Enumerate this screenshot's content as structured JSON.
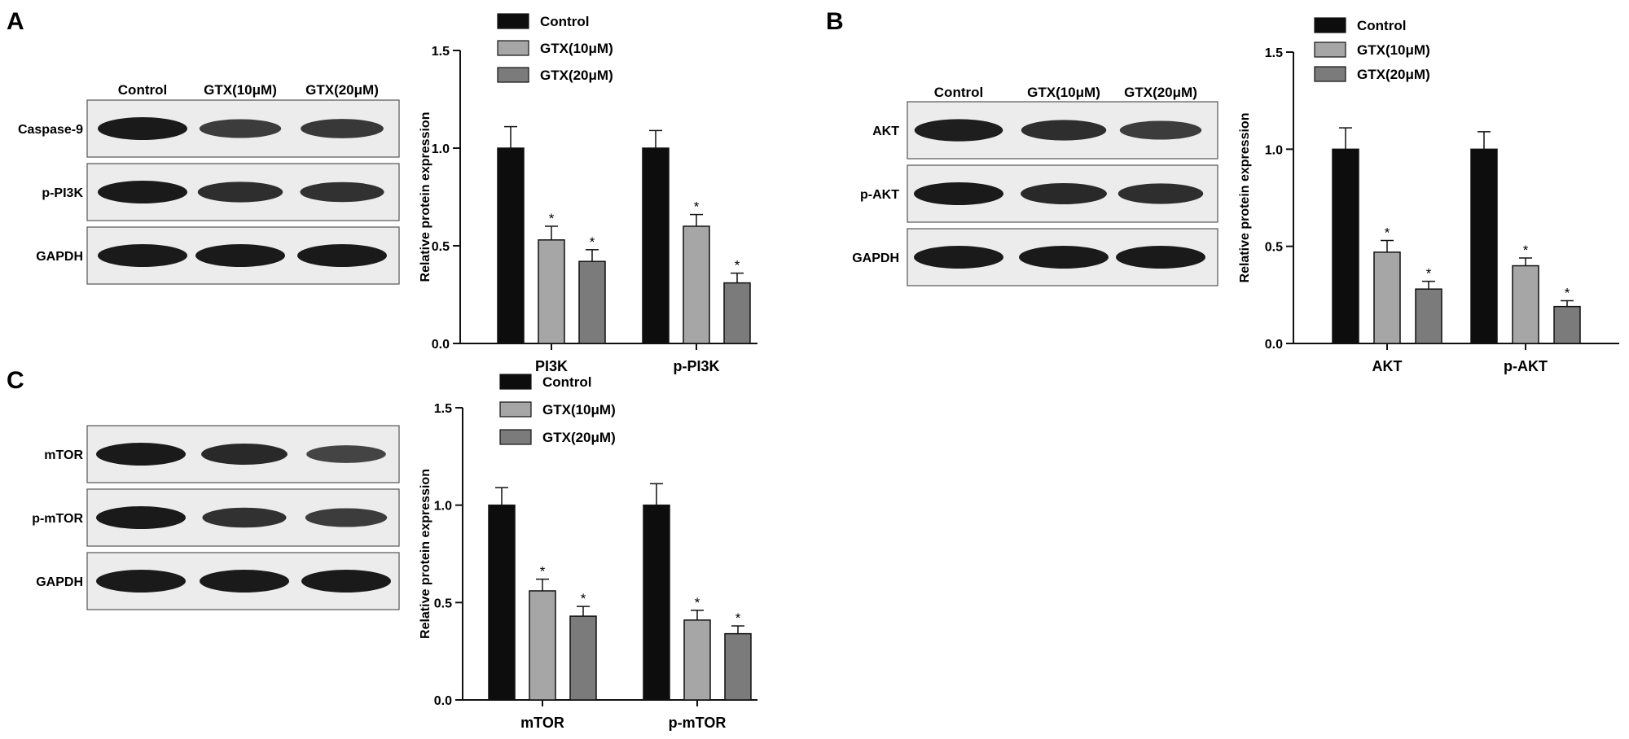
{
  "colors": {
    "control": "#0d0d0d",
    "gtx10": "#a6a6a6",
    "gtx20": "#7b7b7b",
    "axis": "#111111",
    "blot_bg": "#ececec",
    "band": "#1a1a1a"
  },
  "chart_data": [
    {
      "panel": "A",
      "type": "bar",
      "categories": [
        "PI3K",
        "p-PI3K"
      ],
      "ylabel": "Relative protein expression",
      "ylim": [
        0,
        1.5
      ],
      "yticks": [
        "0.0",
        "0.5",
        "1.0",
        "1.5"
      ],
      "legend": [
        "Control",
        "GTX(10μM)",
        "GTX(20μM)"
      ],
      "series": [
        {
          "name": "Control",
          "values": [
            1.0,
            1.0
          ],
          "errors": [
            0.11,
            0.09
          ],
          "sig": [
            "",
            ""
          ]
        },
        {
          "name": "GTX(10μM)",
          "values": [
            0.53,
            0.6
          ],
          "errors": [
            0.07,
            0.06
          ],
          "sig": [
            "*",
            "*"
          ]
        },
        {
          "name": "GTX(20μM)",
          "values": [
            0.42,
            0.31
          ],
          "errors": [
            0.06,
            0.05
          ],
          "sig": [
            "*",
            "*"
          ]
        }
      ],
      "blot": {
        "lanes": [
          "Control",
          "GTX(10μM)",
          "GTX(20μM)"
        ],
        "rows": [
          {
            "label": "Caspase-9",
            "intensity": [
              1.0,
              0.65,
              0.7
            ]
          },
          {
            "label": "p-PI3K",
            "intensity": [
              1.0,
              0.8,
              0.75
            ]
          },
          {
            "label": "GAPDH",
            "intensity": [
              1.0,
              1.0,
              1.0
            ]
          }
        ]
      }
    },
    {
      "panel": "B",
      "type": "bar",
      "categories": [
        "AKT",
        "p-AKT"
      ],
      "ylabel": "Relative protein expression",
      "ylim": [
        0,
        1.5
      ],
      "yticks": [
        "0.0",
        "0.5",
        "1.0",
        "1.5"
      ],
      "legend": [
        "Control",
        "GTX(10μM)",
        "GTX(20μM)"
      ],
      "series": [
        {
          "name": "Control",
          "values": [
            1.0,
            1.0
          ],
          "errors": [
            0.11,
            0.09
          ],
          "sig": [
            "",
            ""
          ]
        },
        {
          "name": "GTX(10μM)",
          "values": [
            0.47,
            0.4
          ],
          "errors": [
            0.06,
            0.04
          ],
          "sig": [
            "*",
            "*"
          ]
        },
        {
          "name": "GTX(20μM)",
          "values": [
            0.28,
            0.19
          ],
          "errors": [
            0.04,
            0.03
          ],
          "sig": [
            "*",
            "*"
          ]
        }
      ],
      "blot": {
        "lanes": [
          "Control",
          "GTX(10μM)",
          "GTX(20μM)"
        ],
        "rows": [
          {
            "label": "AKT",
            "intensity": [
              0.95,
              0.8,
              0.65
            ]
          },
          {
            "label": "p-AKT",
            "intensity": [
              1.0,
              0.85,
              0.8
            ]
          },
          {
            "label": "GAPDH",
            "intensity": [
              1.0,
              1.0,
              1.0
            ]
          }
        ]
      }
    },
    {
      "panel": "C",
      "type": "bar",
      "categories": [
        "mTOR",
        "p-mTOR"
      ],
      "ylabel": "Relative protein expression",
      "ylim": [
        0,
        1.5
      ],
      "yticks": [
        "0.0",
        "0.5",
        "1.0",
        "1.5"
      ],
      "legend": [
        "Control",
        "GTX(10μM)",
        "GTX(20μM)"
      ],
      "series": [
        {
          "name": "Control",
          "values": [
            1.0,
            1.0
          ],
          "errors": [
            0.09,
            0.11
          ],
          "sig": [
            "",
            ""
          ]
        },
        {
          "name": "GTX(10μM)",
          "values": [
            0.56,
            0.41
          ],
          "errors": [
            0.06,
            0.05
          ],
          "sig": [
            "*",
            "*"
          ]
        },
        {
          "name": "GTX(20μM)",
          "values": [
            0.43,
            0.34
          ],
          "errors": [
            0.05,
            0.04
          ],
          "sig": [
            "*",
            "*"
          ]
        }
      ],
      "blot": {
        "lanes": [],
        "rows": [
          {
            "label": "mTOR",
            "intensity": [
              1.0,
              0.85,
              0.55
            ]
          },
          {
            "label": "p-mTOR",
            "intensity": [
              1.0,
              0.75,
              0.65
            ]
          },
          {
            "label": "GAPDH",
            "intensity": [
              1.0,
              1.0,
              1.0
            ]
          }
        ]
      }
    }
  ]
}
